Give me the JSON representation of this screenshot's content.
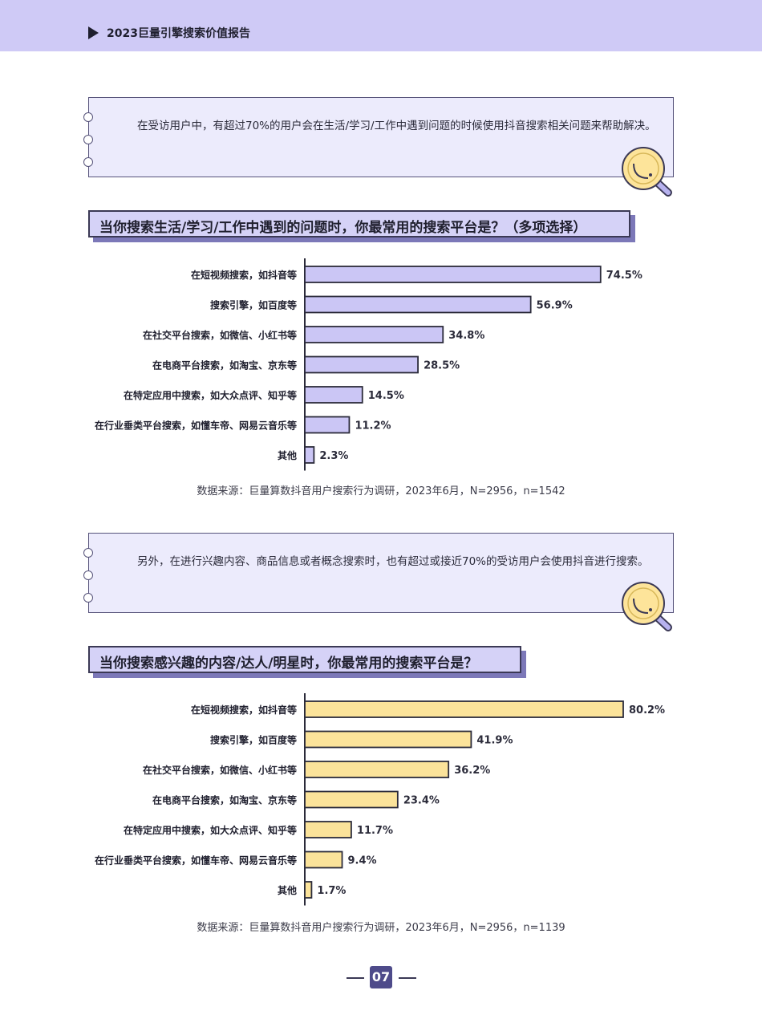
{
  "header": {
    "title": "2023巨量引擎搜索价值报告"
  },
  "notes": [
    {
      "text": "在受访用户中，有超过70%的用户会在生活/学习/工作中遇到问题的时候使用抖音搜索相关问题来帮助解决。"
    },
    {
      "text": "另外，在进行兴趣内容、商品信息或者概念搜索时，也有超过或接近70%的受访用户会使用抖音进行搜索。"
    }
  ],
  "chart_data": [
    {
      "type": "bar",
      "orientation": "horizontal",
      "title": "当你搜索生活/学习/工作中遇到的问题时，你最常用的搜索平台是？（多项选择）",
      "categories": [
        "在短视频搜索，如抖音等",
        "搜索引擎，如百度等",
        "在社交平台搜索，如微信、小红书等",
        "在电商平台搜索，如淘宝、京东等",
        "在特定应用中搜索，如大众点评、知乎等",
        "在行业垂类平台搜索，如懂车帝、网易云音乐等",
        "其他"
      ],
      "values": [
        74.5,
        56.9,
        34.8,
        28.5,
        14.5,
        11.2,
        2.3
      ],
      "labels": [
        "74.5%",
        "56.9%",
        "34.8%",
        "28.5%",
        "14.5%",
        "11.2%",
        "2.3%"
      ],
      "color": "#cbc6f5",
      "source": "数据来源：巨量算数抖音用户搜索行为调研，2023年6月，N=2956，n=1542"
    },
    {
      "type": "bar",
      "orientation": "horizontal",
      "title": "当你搜索感兴趣的内容/达人/明星时，你最常用的搜索平台是？",
      "categories": [
        "在短视频搜索，如抖音等",
        "搜索引擎，如百度等",
        "在社交平台搜索，如微信、小红书等",
        "在电商平台搜索，如淘宝、京东等",
        "在特定应用中搜索，如大众点评、知乎等",
        "在行业垂类平台搜索，如懂车帝、网易云音乐等",
        "其他"
      ],
      "values": [
        80.2,
        41.9,
        36.2,
        23.4,
        11.7,
        9.4,
        1.7
      ],
      "labels": [
        "80.2%",
        "41.9%",
        "36.2%",
        "23.4%",
        "11.7%",
        "9.4%",
        "1.7%"
      ],
      "color": "#fbe39a",
      "source": "数据来源：巨量算数抖音用户搜索行为调研，2023年6月，N=2956，n=1139"
    }
  ],
  "page_number": "07"
}
